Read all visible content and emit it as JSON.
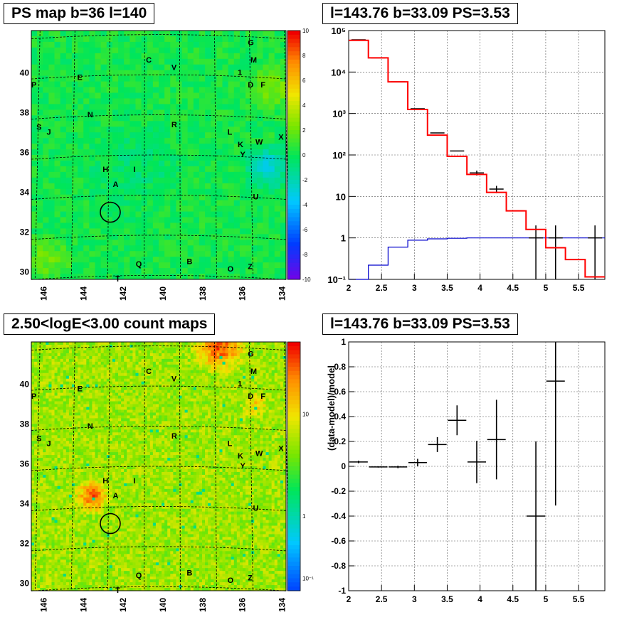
{
  "panels": {
    "top_left_title": "PS map b=36 l=140",
    "top_right_title": "l=143.76 b=33.09 PS=3.53",
    "bottom_left_title": "2.50<logE<3.00 count maps",
    "bottom_right_title": "l=143.76 b=33.09 PS=3.53"
  },
  "colors": {
    "data": "#000000",
    "model": "#ff0000",
    "ratio": "#0000cc",
    "grid": "#555555"
  },
  "chart_data": [
    {
      "type": "heatmap",
      "title": "PS map b=36 l=140",
      "x_ticks": [
        "146",
        "144",
        "142",
        "140",
        "138",
        "136",
        "134"
      ],
      "y_ticks": [
        "30",
        "32",
        "34",
        "36",
        "38",
        "40"
      ],
      "colorbar_ticks": [
        "10",
        "8",
        "6",
        "4",
        "2",
        "0",
        "-2",
        "-4",
        "-6",
        "-8",
        "-10"
      ],
      "colorbar_range": [
        -10,
        10
      ],
      "labels": [
        "G",
        "C",
        "V",
        "M",
        "1",
        "E",
        "D",
        "F",
        "P",
        "N",
        "R",
        "L",
        "K",
        "W",
        "X",
        "S",
        "J",
        "Y",
        "H",
        "I",
        "A",
        "U",
        "Q",
        "B",
        "O",
        "Z",
        "T"
      ],
      "circle_label": "source circle"
    },
    {
      "type": "line",
      "title": "l=143.76 b=33.09 PS=3.53",
      "xlim": [
        2,
        5.9
      ],
      "ylim": [
        0.1,
        100000
      ],
      "yscale": "log",
      "x_ticks": [
        "2",
        "2.5",
        "3",
        "3.5",
        "4",
        "4.5",
        "5",
        "5.5"
      ],
      "y_ticks": [
        "10^-1",
        "1",
        "10",
        "10^2",
        "10^3",
        "10^4",
        "10^5"
      ],
      "grid": true,
      "series": [
        {
          "kind": "step",
          "edges": [
            2.0,
            2.3,
            2.6,
            2.9,
            3.2,
            3.5,
            3.8,
            4.1,
            4.4,
            4.7,
            5.0,
            5.3,
            5.6,
            5.9
          ],
          "values": [
            58000,
            22000,
            5800,
            1250,
            300,
            93,
            34,
            12.5,
            4.5,
            1.6,
            0.58,
            0.3,
            0.115
          ]
        },
        {
          "kind": "step",
          "edges": [
            2.0,
            2.3,
            2.6,
            2.9,
            3.2,
            3.5,
            3.8,
            4.1,
            4.4,
            4.7,
            5.0,
            5.3,
            5.6,
            5.9
          ],
          "values": [
            0.1,
            0.22,
            0.6,
            0.88,
            0.95,
            0.98,
            1.0,
            1.0,
            1.0,
            1.0,
            1.0,
            1.0,
            1.0
          ]
        },
        {
          "kind": "points",
          "x": [
            2.15,
            2.45,
            2.75,
            3.05,
            3.35,
            3.65,
            3.95,
            4.25,
            4.55,
            4.85,
            5.15,
            5.45,
            5.75
          ],
          "y": [
            60000,
            22000,
            5800,
            1300,
            340,
            125,
            37,
            15,
            4.5,
            1.0,
            1.0,
            0.3,
            1.0
          ],
          "ylow": [
            null,
            null,
            null,
            null,
            null,
            null,
            32,
            12,
            null,
            0.1,
            0.1,
            null,
            0.1
          ],
          "yhigh": [
            null,
            null,
            null,
            null,
            null,
            null,
            42,
            18,
            null,
            2.0,
            2.0,
            null,
            2.0
          ]
        }
      ]
    },
    {
      "type": "heatmap",
      "title": "2.50<logE<3.00 count maps",
      "x_ticks": [
        "146",
        "144",
        "142",
        "140",
        "138",
        "136",
        "134"
      ],
      "y_ticks": [
        "30",
        "32",
        "34",
        "36",
        "38",
        "40"
      ],
      "colorbar_ticks": [
        "10",
        "1",
        "10^-1"
      ],
      "colorbar_scale": "log",
      "labels": [
        "G",
        "C",
        "V",
        "M",
        "1",
        "E",
        "D",
        "F",
        "P",
        "N",
        "R",
        "L",
        "K",
        "W",
        "X",
        "S",
        "J",
        "Y",
        "H",
        "I",
        "A",
        "U",
        "Q",
        "B",
        "O",
        "Z",
        "T"
      ]
    },
    {
      "type": "scatter",
      "title": "l=143.76 b=33.09 PS=3.53",
      "ylabel": "(data-model)/model",
      "xlim": [
        2,
        5.9
      ],
      "ylim": [
        -1,
        1
      ],
      "x_ticks": [
        "2",
        "2.5",
        "3",
        "3.5",
        "4",
        "4.5",
        "5",
        "5.5"
      ],
      "y_ticks": [
        "-1",
        "-0.8",
        "-0.6",
        "-0.4",
        "-0.2",
        "0",
        "0.2",
        "0.4",
        "0.6",
        "0.8",
        "1"
      ],
      "grid": true,
      "x": [
        2.15,
        2.45,
        2.75,
        3.05,
        3.35,
        3.65,
        3.95,
        4.25,
        4.85,
        5.15
      ],
      "y": [
        0.035,
        -0.005,
        -0.005,
        0.03,
        0.175,
        0.37,
        0.035,
        0.215,
        -0.4,
        0.685
      ],
      "yerr": [
        0.01,
        0.005,
        0.01,
        0.03,
        0.06,
        0.12,
        0.17,
        0.32,
        0.6,
        1.0
      ]
    }
  ]
}
